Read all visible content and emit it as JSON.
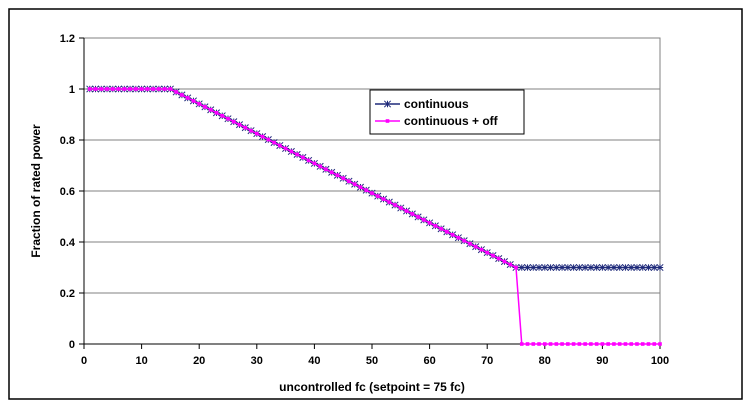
{
  "chart_data": {
    "type": "line",
    "title": "",
    "xlabel": "uncontrolled fc (setpoint = 75 fc)",
    "ylabel": "Fraction of rated power",
    "xlim": [
      0,
      100
    ],
    "ylim": [
      0,
      1.2
    ],
    "x_ticks": [
      "0",
      "10",
      "20",
      "30",
      "40",
      "50",
      "60",
      "70",
      "80",
      "90",
      "100"
    ],
    "y_ticks": [
      "0",
      "0.2",
      "0.4",
      "0.6",
      "0.8",
      "1",
      "1.2"
    ],
    "grid": "horizontal",
    "legend_position": "top-right",
    "series": [
      {
        "name": "continuous",
        "color": "#1f2a7a",
        "marker": "asterisk",
        "x": [
          1,
          15,
          75,
          100
        ],
        "y": [
          1,
          1,
          0.3,
          0.3
        ]
      },
      {
        "name": "continuous + off",
        "color": "#ff00ff",
        "marker": "square",
        "x": [
          1,
          15,
          75,
          76,
          100
        ],
        "y": [
          1,
          1,
          0.3,
          0,
          0
        ]
      }
    ]
  }
}
